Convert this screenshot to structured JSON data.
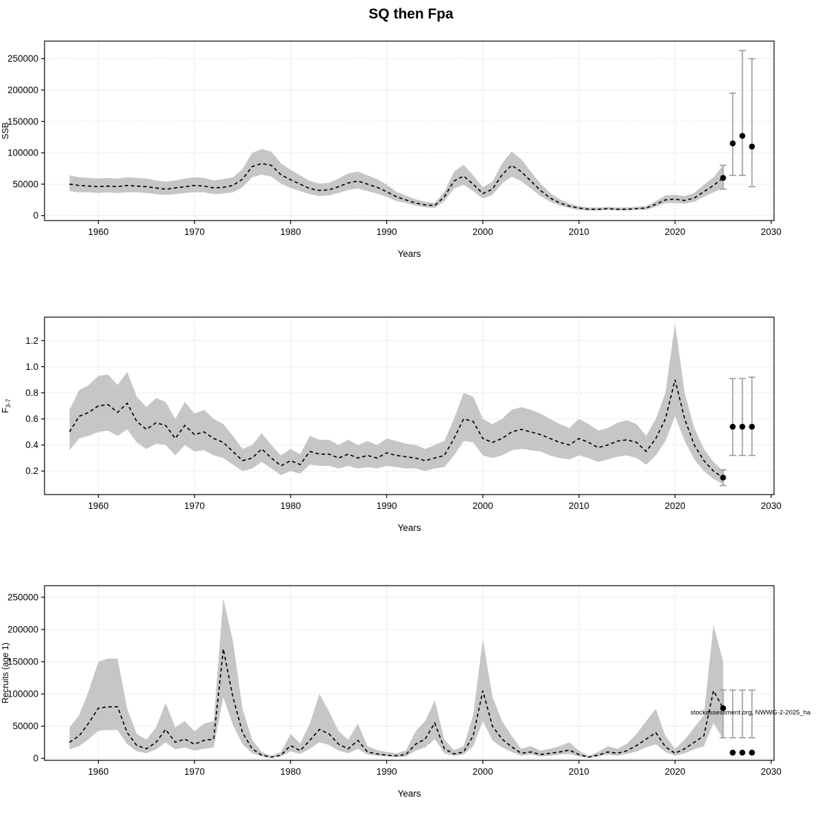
{
  "title": "SQ then Fpa",
  "watermark": "stockassessment.org, NWWG-2-2025_ha",
  "colors": {
    "band": "#c6c6c6",
    "line": "#000000",
    "point": "#000000",
    "errorbar": "#9e9e9e",
    "grid": "#bdbdbd"
  },
  "years": [
    1957,
    1958,
    1959,
    1960,
    1961,
    1962,
    1963,
    1964,
    1965,
    1966,
    1967,
    1968,
    1969,
    1970,
    1971,
    1972,
    1973,
    1974,
    1975,
    1976,
    1977,
    1978,
    1979,
    1980,
    1981,
    1982,
    1983,
    1984,
    1985,
    1986,
    1987,
    1988,
    1989,
    1990,
    1991,
    1992,
    1993,
    1994,
    1995,
    1996,
    1997,
    1998,
    1999,
    2000,
    2001,
    2002,
    2003,
    2004,
    2005,
    2006,
    2007,
    2008,
    2009,
    2010,
    2011,
    2012,
    2013,
    2014,
    2015,
    2016,
    2017,
    2018,
    2019,
    2020,
    2021,
    2022,
    2023,
    2024,
    2025
  ],
  "xticks": [
    1960,
    1970,
    1980,
    1990,
    2000,
    2010,
    2020,
    2030
  ],
  "chart_data": [
    {
      "type": "line",
      "name": "ssb",
      "ylabel": "SSB",
      "xlabel": "Years",
      "xlim": [
        1954.4,
        2030.3
      ],
      "ylim": [
        -8000,
        278000
      ],
      "yticks": [
        0,
        50000,
        100000,
        150000,
        200000,
        250000
      ],
      "ytick_labels": [
        "0",
        "50000",
        "100000",
        "150000",
        "200000",
        "250000"
      ],
      "values": [
        50000,
        48000,
        47000,
        46000,
        47000,
        46000,
        48000,
        47000,
        46000,
        44000,
        42000,
        44000,
        46000,
        48000,
        47000,
        44000,
        45000,
        48000,
        58000,
        78000,
        83000,
        80000,
        65000,
        57000,
        50000,
        43000,
        40000,
        41000,
        46000,
        52000,
        55000,
        50000,
        45000,
        38000,
        30000,
        25000,
        20000,
        17000,
        16000,
        30000,
        55000,
        63000,
        50000,
        35000,
        42000,
        65000,
        80000,
        70000,
        55000,
        40000,
        28000,
        20000,
        15000,
        12000,
        10000,
        10000,
        11000,
        10000,
        10000,
        11000,
        12000,
        18000,
        25000,
        26000,
        24000,
        28000,
        38000,
        48000,
        60000
      ],
      "band_lower": [
        39000,
        37000,
        37000,
        36000,
        37000,
        36000,
        37000,
        37000,
        36000,
        34000,
        33000,
        34000,
        36000,
        37000,
        37000,
        34000,
        35000,
        37000,
        45000,
        61000,
        65000,
        62000,
        51000,
        44000,
        39000,
        34000,
        31000,
        32000,
        36000,
        41000,
        43000,
        39000,
        35000,
        30000,
        23000,
        20000,
        16000,
        13000,
        12000,
        23000,
        43000,
        49000,
        39000,
        27000,
        33000,
        51000,
        62000,
        55000,
        43000,
        31000,
        22000,
        16000,
        12000,
        9000,
        8000,
        8000,
        9000,
        8000,
        8000,
        9000,
        9000,
        14000,
        20000,
        20000,
        19000,
        22000,
        30000,
        37000,
        44000
      ],
      "band_upper": [
        64000,
        61000,
        60000,
        59000,
        60000,
        59000,
        61000,
        60000,
        59000,
        56000,
        54000,
        56000,
        59000,
        61000,
        60000,
        56000,
        58000,
        61000,
        74000,
        100000,
        106000,
        102000,
        83000,
        73000,
        64000,
        55000,
        51000,
        52000,
        59000,
        67000,
        70000,
        64000,
        58000,
        49000,
        38000,
        32000,
        26000,
        22000,
        20000,
        38000,
        70000,
        81000,
        64000,
        45000,
        54000,
        83000,
        102000,
        90000,
        70000,
        51000,
        36000,
        26000,
        19000,
        15000,
        13000,
        13000,
        14000,
        13000,
        13000,
        14000,
        15000,
        23000,
        32000,
        33000,
        31000,
        36000,
        49000,
        61000,
        80000
      ],
      "forecast": [
        {
          "year": 2025,
          "value": 60000,
          "lo": 42000,
          "hi": 80000
        },
        {
          "year": 2026,
          "value": 115000,
          "lo": 64000,
          "hi": 195000
        },
        {
          "year": 2027,
          "value": 127000,
          "lo": 64000,
          "hi": 263000
        },
        {
          "year": 2028,
          "value": 110000,
          "lo": 46000,
          "hi": 250000
        }
      ]
    },
    {
      "type": "line",
      "name": "fishing-mortality",
      "ylabel": "F",
      "ylabel_sub": "3-7",
      "xlabel": "Years",
      "xlim": [
        1954.4,
        2030.3
      ],
      "ylim": [
        0.02,
        1.38
      ],
      "yticks": [
        0.2,
        0.4,
        0.6,
        0.8,
        1.0,
        1.2
      ],
      "ytick_labels": [
        "0.2",
        "0.4",
        "0.6",
        "0.8",
        "1.0",
        "1.2"
      ],
      "values": [
        0.5,
        0.62,
        0.65,
        0.7,
        0.71,
        0.65,
        0.72,
        0.58,
        0.52,
        0.57,
        0.55,
        0.45,
        0.55,
        0.48,
        0.5,
        0.45,
        0.42,
        0.35,
        0.28,
        0.3,
        0.37,
        0.3,
        0.24,
        0.28,
        0.25,
        0.35,
        0.33,
        0.33,
        0.3,
        0.33,
        0.3,
        0.32,
        0.3,
        0.34,
        0.32,
        0.31,
        0.3,
        0.28,
        0.3,
        0.32,
        0.45,
        0.6,
        0.58,
        0.45,
        0.42,
        0.45,
        0.5,
        0.52,
        0.5,
        0.48,
        0.45,
        0.42,
        0.4,
        0.45,
        0.42,
        0.38,
        0.4,
        0.43,
        0.44,
        0.42,
        0.35,
        0.45,
        0.6,
        0.9,
        0.6,
        0.4,
        0.28,
        0.2,
        0.15
      ],
      "band_lower": [
        0.36,
        0.45,
        0.47,
        0.5,
        0.51,
        0.47,
        0.52,
        0.42,
        0.37,
        0.41,
        0.4,
        0.32,
        0.4,
        0.35,
        0.36,
        0.32,
        0.3,
        0.25,
        0.2,
        0.22,
        0.27,
        0.22,
        0.17,
        0.2,
        0.18,
        0.25,
        0.24,
        0.24,
        0.22,
        0.24,
        0.22,
        0.23,
        0.22,
        0.24,
        0.23,
        0.22,
        0.22,
        0.2,
        0.22,
        0.23,
        0.32,
        0.43,
        0.42,
        0.32,
        0.3,
        0.32,
        0.36,
        0.37,
        0.36,
        0.35,
        0.32,
        0.3,
        0.29,
        0.32,
        0.3,
        0.27,
        0.29,
        0.31,
        0.32,
        0.3,
        0.25,
        0.32,
        0.43,
        0.62,
        0.43,
        0.29,
        0.2,
        0.14,
        0.1
      ],
      "band_upper": [
        0.67,
        0.82,
        0.86,
        0.93,
        0.94,
        0.86,
        0.96,
        0.77,
        0.69,
        0.76,
        0.73,
        0.6,
        0.73,
        0.64,
        0.67,
        0.6,
        0.56,
        0.47,
        0.37,
        0.4,
        0.49,
        0.4,
        0.32,
        0.37,
        0.33,
        0.47,
        0.44,
        0.44,
        0.4,
        0.44,
        0.4,
        0.43,
        0.4,
        0.45,
        0.43,
        0.41,
        0.4,
        0.37,
        0.4,
        0.43,
        0.6,
        0.8,
        0.77,
        0.6,
        0.56,
        0.6,
        0.67,
        0.69,
        0.67,
        0.64,
        0.6,
        0.56,
        0.53,
        0.6,
        0.56,
        0.51,
        0.53,
        0.57,
        0.59,
        0.56,
        0.47,
        0.6,
        0.8,
        1.33,
        0.8,
        0.53,
        0.37,
        0.27,
        0.2
      ],
      "forecast": [
        {
          "year": 2025,
          "value": 0.15,
          "lo": 0.09,
          "hi": 0.21
        },
        {
          "year": 2026,
          "value": 0.54,
          "lo": 0.32,
          "hi": 0.91
        },
        {
          "year": 2027,
          "value": 0.54,
          "lo": 0.32,
          "hi": 0.91
        },
        {
          "year": 2028,
          "value": 0.54,
          "lo": 0.32,
          "hi": 0.92
        }
      ]
    },
    {
      "type": "line",
      "name": "recruits",
      "ylabel": "Recruits (age 1)",
      "xlabel": "Years",
      "xlim": [
        1954.4,
        2030.3
      ],
      "ylim": [
        -3000,
        268000
      ],
      "yticks": [
        0,
        50000,
        100000,
        150000,
        200000,
        250000
      ],
      "ytick_labels": [
        "0",
        "50000",
        "100000",
        "150000",
        "200000",
        "250000"
      ],
      "values": [
        25000,
        35000,
        55000,
        78000,
        80000,
        80000,
        40000,
        20000,
        15000,
        25000,
        45000,
        25000,
        30000,
        22000,
        28000,
        30000,
        170000,
        95000,
        40000,
        15000,
        5000,
        2000,
        5000,
        20000,
        12000,
        28000,
        45000,
        38000,
        22000,
        15000,
        28000,
        10000,
        7000,
        5000,
        4000,
        6000,
        22000,
        30000,
        55000,
        15000,
        7000,
        10000,
        35000,
        105000,
        50000,
        30000,
        18000,
        8000,
        10000,
        6000,
        8000,
        10000,
        13000,
        6000,
        2000,
        5000,
        10000,
        8000,
        12000,
        20000,
        30000,
        40000,
        18000,
        8000,
        15000,
        25000,
        35000,
        105000,
        78000
      ],
      "band_lower": [
        14000,
        19000,
        30000,
        43000,
        44000,
        44000,
        22000,
        11000,
        8000,
        14000,
        25000,
        14000,
        17000,
        12000,
        15000,
        17000,
        95000,
        52000,
        22000,
        8000,
        3000,
        1000,
        3000,
        11000,
        7000,
        15000,
        25000,
        21000,
        12000,
        8000,
        15000,
        6000,
        4000,
        3000,
        2000,
        3000,
        12000,
        17000,
        30000,
        8000,
        4000,
        6000,
        19000,
        58000,
        28000,
        17000,
        10000,
        4000,
        6000,
        3000,
        4000,
        6000,
        7000,
        3000,
        1000,
        3000,
        6000,
        4000,
        7000,
        11000,
        17000,
        22000,
        10000,
        4000,
        8000,
        14000,
        19000,
        55000,
        30000
      ],
      "band_upper": [
        48000,
        67000,
        105000,
        150000,
        155000,
        155000,
        77000,
        38000,
        29000,
        48000,
        86000,
        48000,
        58000,
        42000,
        54000,
        58000,
        248000,
        182000,
        77000,
        29000,
        10000,
        4000,
        10000,
        38000,
        23000,
        54000,
        100000,
        73000,
        42000,
        29000,
        54000,
        19000,
        13000,
        10000,
        8000,
        12000,
        42000,
        58000,
        90000,
        29000,
        13000,
        19000,
        67000,
        185000,
        96000,
        58000,
        35000,
        15000,
        19000,
        12000,
        15000,
        19000,
        25000,
        12000,
        4000,
        10000,
        19000,
        15000,
        23000,
        38000,
        58000,
        77000,
        35000,
        15000,
        29000,
        48000,
        67000,
        207000,
        150000
      ],
      "forecast": [
        {
          "year": 2025,
          "value": 78000,
          "lo": 32000,
          "hi": 106000
        },
        {
          "year": 2026,
          "value": 9000,
          "lo": 32000,
          "hi": 106000
        },
        {
          "year": 2027,
          "value": 9000,
          "lo": 32000,
          "hi": 106000
        },
        {
          "year": 2028,
          "value": 9000,
          "lo": 32000,
          "hi": 106000
        }
      ]
    }
  ]
}
